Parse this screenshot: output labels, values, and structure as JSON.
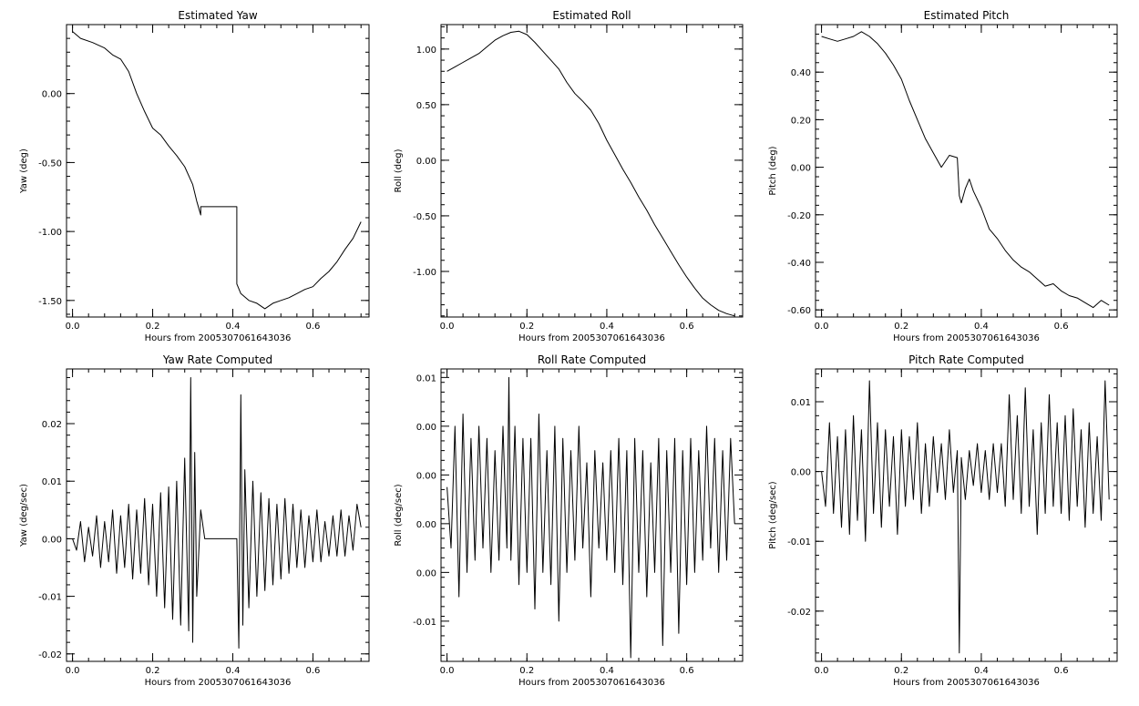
{
  "chart_data": [
    {
      "type": "line",
      "title": "Estimated Yaw",
      "xlabel": "Hours from 2005307061643036",
      "ylabel": "Yaw (deg)",
      "xlim": [
        -0.015,
        0.74
      ],
      "ylim": [
        -1.62,
        0.5
      ],
      "xticks": [
        0.0,
        0.2,
        0.4,
        0.6
      ],
      "xtick_labels": [
        "0.0",
        "0.2",
        "0.4",
        "0.6"
      ],
      "yticks": [
        0.0,
        -0.5,
        -1.0,
        -1.5
      ],
      "ytick_labels": [
        "0.00",
        "-0.50",
        "-1.00",
        "-1.50"
      ],
      "grid": false,
      "series": [
        {
          "x": [
            0.0,
            0.02,
            0.05,
            0.08,
            0.1,
            0.12,
            0.14,
            0.16,
            0.18,
            0.2,
            0.22,
            0.24,
            0.26,
            0.28,
            0.3,
            0.31,
            0.32,
            0.32,
            0.41,
            0.41,
            0.42,
            0.44,
            0.46,
            0.48,
            0.5,
            0.52,
            0.54,
            0.56,
            0.58,
            0.6,
            0.62,
            0.64,
            0.66,
            0.68,
            0.7,
            0.72
          ],
          "y": [
            0.45,
            0.4,
            0.37,
            0.33,
            0.28,
            0.25,
            0.16,
            0.0,
            -0.13,
            -0.25,
            -0.3,
            -0.38,
            -0.45,
            -0.53,
            -0.66,
            -0.78,
            -0.88,
            -0.82,
            -0.82,
            -1.38,
            -1.45,
            -1.5,
            -1.52,
            -1.56,
            -1.52,
            -1.5,
            -1.48,
            -1.45,
            -1.42,
            -1.4,
            -1.34,
            -1.29,
            -1.22,
            -1.13,
            -1.05,
            -0.93
          ]
        }
      ]
    },
    {
      "type": "line",
      "title": "Estimated Roll",
      "xlabel": "Hours from 2005307061643036",
      "ylabel": "Roll (deg)",
      "xlim": [
        -0.015,
        0.74
      ],
      "ylim": [
        -1.41,
        1.22
      ],
      "xticks": [
        0.0,
        0.2,
        0.4,
        0.6
      ],
      "xtick_labels": [
        "0.0",
        "0.2",
        "0.4",
        "0.6"
      ],
      "yticks": [
        1.0,
        0.5,
        0.0,
        -0.5,
        -1.0
      ],
      "ytick_labels": [
        "1.00",
        "0.50",
        "0.00",
        "-0.50",
        "-1.00"
      ],
      "grid": false,
      "series": [
        {
          "x": [
            0.0,
            0.02,
            0.04,
            0.06,
            0.08,
            0.1,
            0.12,
            0.14,
            0.16,
            0.18,
            0.2,
            0.22,
            0.24,
            0.26,
            0.28,
            0.3,
            0.32,
            0.34,
            0.36,
            0.38,
            0.4,
            0.42,
            0.44,
            0.46,
            0.48,
            0.5,
            0.52,
            0.54,
            0.56,
            0.58,
            0.6,
            0.62,
            0.64,
            0.66,
            0.68,
            0.7,
            0.72
          ],
          "y": [
            0.8,
            0.84,
            0.88,
            0.92,
            0.96,
            1.02,
            1.08,
            1.12,
            1.15,
            1.16,
            1.13,
            1.06,
            0.98,
            0.9,
            0.82,
            0.7,
            0.6,
            0.53,
            0.45,
            0.33,
            0.18,
            0.05,
            -0.08,
            -0.2,
            -0.33,
            -0.45,
            -0.58,
            -0.7,
            -0.82,
            -0.94,
            -1.05,
            -1.15,
            -1.24,
            -1.3,
            -1.35,
            -1.38,
            -1.4
          ]
        }
      ]
    },
    {
      "type": "line",
      "title": "Estimated Pitch",
      "xlabel": "Hours from 2005307061643036",
      "ylabel": "Pitch (deg)",
      "xlim": [
        -0.015,
        0.74
      ],
      "ylim": [
        -0.63,
        0.6
      ],
      "xticks": [
        0.0,
        0.2,
        0.4,
        0.6
      ],
      "xtick_labels": [
        "0.0",
        "0.2",
        "0.4",
        "0.6"
      ],
      "yticks": [
        0.4,
        0.2,
        0.0,
        -0.2,
        -0.4,
        -0.6
      ],
      "ytick_labels": [
        "0.40",
        "0.20",
        "0.00",
        "-0.20",
        "-0.40",
        "-0.60"
      ],
      "grid": false,
      "series": [
        {
          "x": [
            0.0,
            0.02,
            0.04,
            0.06,
            0.08,
            0.1,
            0.12,
            0.14,
            0.16,
            0.18,
            0.2,
            0.22,
            0.24,
            0.26,
            0.28,
            0.3,
            0.32,
            0.34,
            0.345,
            0.35,
            0.36,
            0.37,
            0.38,
            0.4,
            0.42,
            0.44,
            0.46,
            0.48,
            0.5,
            0.52,
            0.54,
            0.56,
            0.58,
            0.6,
            0.62,
            0.64,
            0.66,
            0.68,
            0.7,
            0.72
          ],
          "y": [
            0.55,
            0.54,
            0.53,
            0.54,
            0.55,
            0.57,
            0.55,
            0.52,
            0.48,
            0.43,
            0.37,
            0.28,
            0.2,
            0.12,
            0.06,
            -0.0,
            0.05,
            0.04,
            -0.12,
            -0.15,
            -0.09,
            -0.05,
            -0.1,
            -0.17,
            -0.26,
            -0.3,
            -0.35,
            -0.39,
            -0.42,
            -0.44,
            -0.47,
            -0.5,
            -0.49,
            -0.52,
            -0.54,
            -0.55,
            -0.57,
            -0.59,
            -0.56,
            -0.58
          ]
        }
      ]
    },
    {
      "type": "line",
      "title": "Yaw Rate Computed",
      "xlabel": "Hours from 2005307061643036",
      "ylabel": "Yaw (deg/sec)",
      "xlim": [
        -0.015,
        0.74
      ],
      "ylim": [
        -0.0213,
        0.0295
      ],
      "xticks": [
        0.0,
        0.2,
        0.4,
        0.6
      ],
      "xtick_labels": [
        "0.0",
        "0.2",
        "0.4",
        "0.6"
      ],
      "yticks": [
        0.02,
        0.01,
        0.0,
        -0.01,
        -0.02
      ],
      "ytick_labels": [
        "0.02",
        "0.01",
        "0.00",
        "-0.01",
        "-0.02"
      ],
      "grid": false,
      "series": [
        {
          "x": [
            0.0,
            0.01,
            0.02,
            0.03,
            0.04,
            0.05,
            0.06,
            0.07,
            0.08,
            0.09,
            0.1,
            0.11,
            0.12,
            0.13,
            0.14,
            0.15,
            0.16,
            0.17,
            0.18,
            0.19,
            0.2,
            0.21,
            0.22,
            0.23,
            0.24,
            0.25,
            0.26,
            0.27,
            0.28,
            0.29,
            0.295,
            0.3,
            0.305,
            0.31,
            0.32,
            0.33,
            0.41,
            0.415,
            0.42,
            0.425,
            0.43,
            0.44,
            0.45,
            0.46,
            0.47,
            0.48,
            0.49,
            0.5,
            0.51,
            0.52,
            0.53,
            0.54,
            0.55,
            0.56,
            0.57,
            0.58,
            0.59,
            0.6,
            0.61,
            0.62,
            0.63,
            0.64,
            0.65,
            0.66,
            0.67,
            0.68,
            0.69,
            0.7,
            0.71,
            0.72
          ],
          "y": [
            0.0,
            -0.002,
            0.003,
            -0.004,
            0.002,
            -0.003,
            0.004,
            -0.005,
            0.003,
            -0.004,
            0.005,
            -0.006,
            0.004,
            -0.005,
            0.006,
            -0.007,
            0.005,
            -0.006,
            0.007,
            -0.008,
            0.006,
            -0.01,
            0.008,
            -0.012,
            0.009,
            -0.014,
            0.01,
            -0.015,
            0.014,
            -0.016,
            0.028,
            -0.018,
            0.015,
            -0.01,
            0.005,
            0.0,
            0.0,
            -0.019,
            0.025,
            -0.015,
            0.012,
            -0.012,
            0.01,
            -0.01,
            0.008,
            -0.009,
            0.007,
            -0.008,
            0.006,
            -0.007,
            0.007,
            -0.006,
            0.006,
            -0.005,
            0.005,
            -0.005,
            0.004,
            -0.004,
            0.005,
            -0.004,
            0.003,
            -0.003,
            0.004,
            -0.003,
            0.005,
            -0.003,
            0.004,
            -0.002,
            0.006,
            0.002
          ]
        }
      ]
    },
    {
      "type": "line",
      "title": "Roll Rate Computed",
      "xlabel": "Hours from 2005307061643036",
      "ylabel": "Roll (deg/sec)",
      "xlim": [
        -0.015,
        0.74
      ],
      "ylim": [
        -0.0133,
        0.0107
      ],
      "xticks": [
        0.0,
        0.2,
        0.4,
        0.6
      ],
      "xtick_labels": [
        "0.0",
        "0.2",
        "0.4",
        "0.6"
      ],
      "yticks": [
        0.01,
        0.006,
        0.002,
        -0.002,
        -0.006,
        -0.01
      ],
      "ytick_labels": [
        "0.01",
        "0.00",
        "0.00",
        "0.00",
        "0.00",
        "-0.01"
      ],
      "grid": false,
      "series": [
        {
          "x": [
            0.0,
            0.01,
            0.02,
            0.03,
            0.04,
            0.05,
            0.06,
            0.07,
            0.08,
            0.09,
            0.1,
            0.11,
            0.12,
            0.13,
            0.14,
            0.15,
            0.155,
            0.16,
            0.17,
            0.18,
            0.19,
            0.2,
            0.21,
            0.22,
            0.23,
            0.24,
            0.25,
            0.26,
            0.27,
            0.28,
            0.29,
            0.3,
            0.31,
            0.32,
            0.33,
            0.34,
            0.35,
            0.36,
            0.37,
            0.38,
            0.39,
            0.4,
            0.41,
            0.42,
            0.43,
            0.44,
            0.45,
            0.46,
            0.47,
            0.48,
            0.49,
            0.5,
            0.51,
            0.52,
            0.53,
            0.54,
            0.55,
            0.56,
            0.57,
            0.58,
            0.59,
            0.6,
            0.61,
            0.62,
            0.63,
            0.64,
            0.65,
            0.66,
            0.67,
            0.68,
            0.69,
            0.7,
            0.71,
            0.72
          ],
          "y": [
            0.001,
            -0.004,
            0.006,
            -0.008,
            0.007,
            -0.006,
            0.005,
            -0.005,
            0.006,
            -0.004,
            0.005,
            -0.006,
            0.004,
            -0.005,
            0.006,
            -0.004,
            0.01,
            -0.005,
            0.006,
            -0.007,
            0.005,
            -0.006,
            0.005,
            -0.009,
            0.007,
            -0.006,
            0.004,
            -0.007,
            0.006,
            -0.01,
            0.005,
            -0.006,
            0.004,
            -0.005,
            0.006,
            -0.004,
            0.003,
            -0.008,
            0.004,
            -0.004,
            0.003,
            -0.005,
            0.004,
            -0.006,
            0.005,
            -0.007,
            0.004,
            -0.013,
            0.005,
            -0.006,
            0.004,
            -0.008,
            0.003,
            -0.006,
            0.005,
            -0.012,
            0.004,
            -0.006,
            0.005,
            -0.011,
            0.004,
            -0.007,
            0.005,
            -0.006,
            0.004,
            -0.005,
            0.006,
            -0.004,
            0.005,
            -0.006,
            0.004,
            -0.005,
            0.005,
            -0.002
          ]
        }
      ]
    },
    {
      "type": "line",
      "title": "Pitch Rate Computed",
      "xlabel": "Hours from 2005307061643036",
      "ylabel": "Pitch (deg/sec)",
      "xlim": [
        -0.015,
        0.74
      ],
      "ylim": [
        -0.0272,
        0.0147
      ],
      "xticks": [
        0.0,
        0.2,
        0.4,
        0.6
      ],
      "xtick_labels": [
        "0.0",
        "0.2",
        "0.4",
        "0.6"
      ],
      "yticks": [
        0.01,
        0.0,
        -0.01,
        -0.02
      ],
      "ytick_labels": [
        "0.01",
        "0.00",
        "-0.01",
        "-0.02"
      ],
      "grid": false,
      "series": [
        {
          "x": [
            0.0,
            0.01,
            0.02,
            0.03,
            0.04,
            0.05,
            0.06,
            0.07,
            0.08,
            0.09,
            0.1,
            0.11,
            0.12,
            0.13,
            0.14,
            0.15,
            0.16,
            0.17,
            0.18,
            0.19,
            0.2,
            0.21,
            0.22,
            0.23,
            0.24,
            0.25,
            0.26,
            0.27,
            0.28,
            0.29,
            0.3,
            0.31,
            0.32,
            0.33,
            0.34,
            0.345,
            0.35,
            0.36,
            0.37,
            0.38,
            0.39,
            0.4,
            0.41,
            0.42,
            0.43,
            0.44,
            0.45,
            0.46,
            0.47,
            0.48,
            0.49,
            0.5,
            0.51,
            0.52,
            0.53,
            0.54,
            0.55,
            0.56,
            0.57,
            0.58,
            0.59,
            0.6,
            0.61,
            0.62,
            0.63,
            0.64,
            0.65,
            0.66,
            0.67,
            0.68,
            0.69,
            0.7,
            0.71,
            0.72
          ],
          "y": [
            0.0,
            -0.005,
            0.007,
            -0.006,
            0.005,
            -0.008,
            0.006,
            -0.009,
            0.008,
            -0.007,
            0.006,
            -0.01,
            0.013,
            -0.006,
            0.007,
            -0.008,
            0.006,
            -0.005,
            0.005,
            -0.009,
            0.006,
            -0.005,
            0.005,
            -0.004,
            0.007,
            -0.006,
            0.004,
            -0.005,
            0.005,
            -0.003,
            0.004,
            -0.004,
            0.006,
            -0.003,
            0.003,
            -0.026,
            0.002,
            -0.004,
            0.003,
            -0.002,
            0.004,
            -0.003,
            0.003,
            -0.004,
            0.004,
            -0.003,
            0.004,
            -0.005,
            0.011,
            -0.004,
            0.008,
            -0.006,
            0.012,
            -0.005,
            0.006,
            -0.009,
            0.007,
            -0.006,
            0.011,
            -0.005,
            0.007,
            -0.006,
            0.008,
            -0.007,
            0.009,
            -0.005,
            0.006,
            -0.008,
            0.007,
            -0.006,
            0.005,
            -0.007,
            0.013,
            -0.004
          ]
        }
      ]
    }
  ]
}
